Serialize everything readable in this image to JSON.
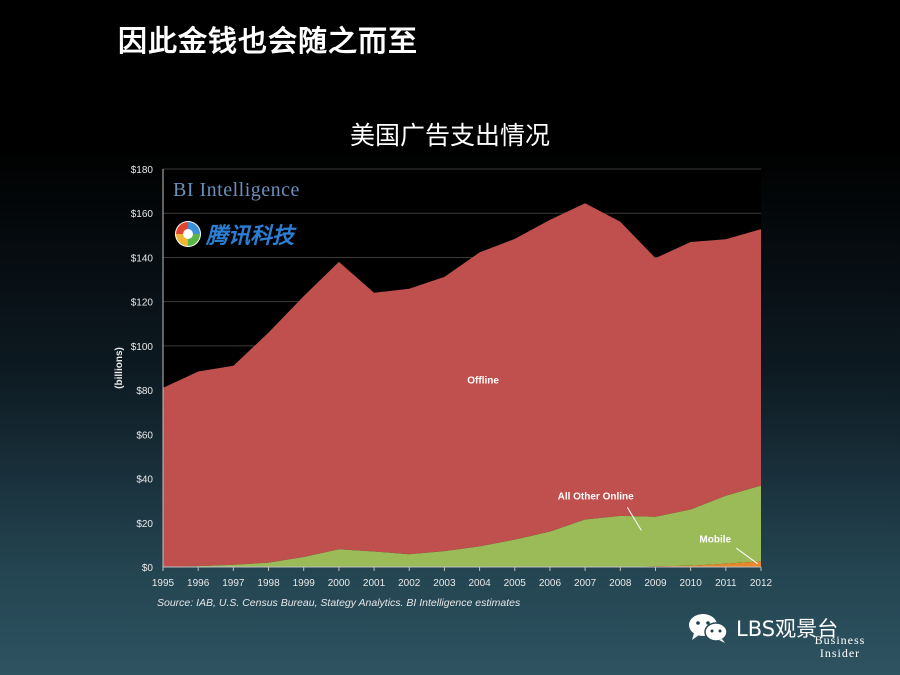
{
  "slide": {
    "title": "因此金钱也会随之而至",
    "chart_title": "美国广告支出情况",
    "source": "Source: IAB, U.S. Census Bureau, Stategy Analytics. BI Intelligence estimates",
    "watermark_wechat": "LBS观景台",
    "watermark_tencent": "腾讯科技",
    "bi_intelligence_logo": "BI Intelligence",
    "business_insider_logo": "Business Insider"
  },
  "chart_data": {
    "type": "area",
    "stacked": true,
    "title": "美国广告支出情况",
    "ylabel": "(billions)",
    "xlabel": "",
    "x": [
      1995,
      1996,
      1997,
      1998,
      1999,
      2000,
      2001,
      2002,
      2003,
      2004,
      2005,
      2006,
      2007,
      2008,
      2009,
      2010,
      2011,
      2012
    ],
    "ylim": [
      0,
      180
    ],
    "yticks": [
      "$0",
      "$20",
      "$40",
      "$60",
      "$80",
      "$100",
      "$120",
      "$140",
      "$160",
      "$180"
    ],
    "ytick_values": [
      0,
      20,
      40,
      60,
      80,
      100,
      120,
      140,
      160,
      180
    ],
    "grid": true,
    "series": [
      {
        "name": "Mobile",
        "color": "#e8872c",
        "values": [
          0,
          0,
          0,
          0,
          0,
          0,
          0,
          0,
          0,
          0,
          0,
          0,
          0,
          0,
          0.3,
          0.6,
          1.5,
          2.6
        ]
      },
      {
        "name": "All Other Online",
        "color": "#9bbb59",
        "values": [
          0,
          0.4,
          1,
          2,
          4.5,
          8,
          7,
          5.8,
          7.2,
          9.3,
          12.4,
          16,
          21.5,
          23.1,
          22.4,
          25.4,
          30.7,
          34.2
        ]
      },
      {
        "name": "Offline",
        "color": "#c0504d",
        "values": [
          81,
          88,
          90,
          104,
          118,
          130,
          117,
          120,
          124,
          133,
          136,
          141,
          143,
          133,
          117,
          121,
          116,
          116
        ]
      }
    ],
    "annotations": [
      "Offline",
      "All Other Online",
      "Mobile"
    ]
  }
}
